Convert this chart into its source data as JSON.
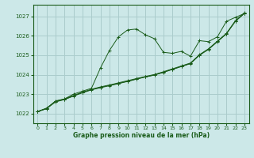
{
  "xlabel": "Graphe pression niveau de la mer (hPa)",
  "ylabel": "",
  "bg_color": "#cce8e8",
  "grid_color": "#aacccc",
  "line_color": "#1a5c1a",
  "xlim": [
    -0.5,
    23.5
  ],
  "ylim": [
    1021.5,
    1027.6
  ],
  "yticks": [
    1022,
    1023,
    1024,
    1025,
    1026,
    1027
  ],
  "xticks": [
    0,
    1,
    2,
    3,
    4,
    5,
    6,
    7,
    8,
    9,
    10,
    11,
    12,
    13,
    14,
    15,
    16,
    17,
    18,
    19,
    20,
    21,
    22,
    23
  ],
  "series1": [
    1022.1,
    1022.25,
    1022.65,
    1022.75,
    1023.0,
    1023.15,
    1023.3,
    1024.35,
    1025.25,
    1025.95,
    1026.3,
    1026.35,
    1026.05,
    1025.85,
    1025.15,
    1025.1,
    1025.2,
    1024.95,
    1025.75,
    1025.7,
    1025.95,
    1026.75,
    1026.95,
    1027.15
  ],
  "series2": [
    1022.1,
    1022.25,
    1022.6,
    1022.72,
    1022.9,
    1023.07,
    1023.22,
    1023.33,
    1023.43,
    1023.54,
    1023.65,
    1023.77,
    1023.88,
    1023.98,
    1024.12,
    1024.27,
    1024.42,
    1024.57,
    1025.0,
    1025.3,
    1025.7,
    1026.1,
    1026.75,
    1027.15
  ],
  "series3": [
    1022.1,
    1022.28,
    1022.63,
    1022.75,
    1022.93,
    1023.1,
    1023.25,
    1023.37,
    1023.47,
    1023.58,
    1023.69,
    1023.8,
    1023.91,
    1024.01,
    1024.15,
    1024.3,
    1024.45,
    1024.6,
    1025.03,
    1025.33,
    1025.73,
    1026.13,
    1026.78,
    1027.18
  ],
  "series4": [
    1022.1,
    1022.26,
    1022.61,
    1022.73,
    1022.91,
    1023.08,
    1023.23,
    1023.35,
    1023.45,
    1023.55,
    1023.66,
    1023.78,
    1023.89,
    1023.99,
    1024.13,
    1024.28,
    1024.43,
    1024.58,
    1025.01,
    1025.31,
    1025.71,
    1026.11,
    1026.76,
    1027.16
  ]
}
